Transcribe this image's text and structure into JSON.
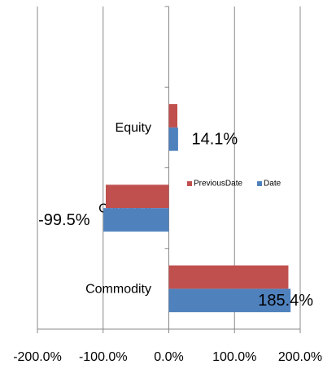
{
  "chart_data": {
    "type": "hbar",
    "categories": [
      null,
      "Equity",
      "Currency",
      "Commodity"
    ],
    "series": [
      {
        "name": "PreviousDate",
        "color": "#c0504d",
        "values": [
          null,
          13,
          -96,
          182
        ]
      },
      {
        "name": "Date",
        "color": "#4f81bd",
        "values": [
          null,
          14.1,
          -99.5,
          185.4
        ],
        "value_labels": [
          null,
          "14.1%",
          "-99.5%",
          "185.4%"
        ]
      }
    ],
    "xlim": [
      -200,
      200
    ],
    "xticks": [
      {
        "value": -200,
        "label": "-200.0%"
      },
      {
        "value": -100,
        "label": "-100.0%"
      },
      {
        "value": 0,
        "label": "0.0%"
      },
      {
        "value": 100,
        "label": "100.0%"
      },
      {
        "value": 200,
        "label": "200.0%"
      }
    ],
    "grid": true,
    "legend": "right"
  }
}
